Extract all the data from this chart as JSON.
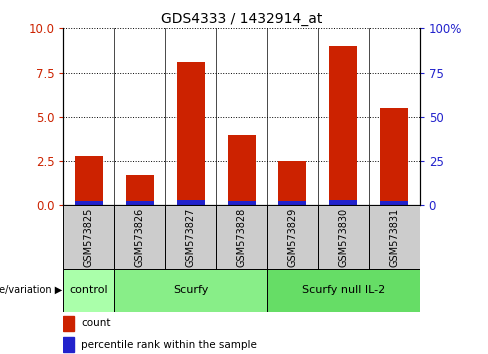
{
  "title": "GDS4333 / 1432914_at",
  "samples": [
    "GSM573825",
    "GSM573826",
    "GSM573827",
    "GSM573828",
    "GSM573829",
    "GSM573830",
    "GSM573831"
  ],
  "count_values": [
    2.8,
    1.7,
    8.1,
    4.0,
    2.5,
    9.0,
    5.5
  ],
  "percentile_values": [
    0.25,
    0.22,
    0.28,
    0.25,
    0.22,
    0.28,
    0.22
  ],
  "bar_width": 0.55,
  "red_color": "#cc2200",
  "blue_color": "#2222cc",
  "ylim_left": [
    0,
    10
  ],
  "ylim_right": [
    0,
    100
  ],
  "yticks_left": [
    0,
    2.5,
    5.0,
    7.5,
    10
  ],
  "yticks_right": [
    0,
    25,
    50,
    75,
    100
  ],
  "groups": [
    {
      "label": "control",
      "start": 0,
      "end": 1,
      "color": "#aaffaa"
    },
    {
      "label": "Scurfy",
      "start": 1,
      "end": 4,
      "color": "#88ee88"
    },
    {
      "label": "Scurfy null IL-2",
      "start": 4,
      "end": 7,
      "color": "#66dd66"
    }
  ],
  "group_label": "genotype/variation",
  "legend_count": "count",
  "legend_percentile": "percentile rank within the sample",
  "plot_bg": "#ffffff",
  "tick_label_color_left": "#cc2200",
  "tick_label_color_right": "#2222cc",
  "sample_box_color": "#cccccc"
}
